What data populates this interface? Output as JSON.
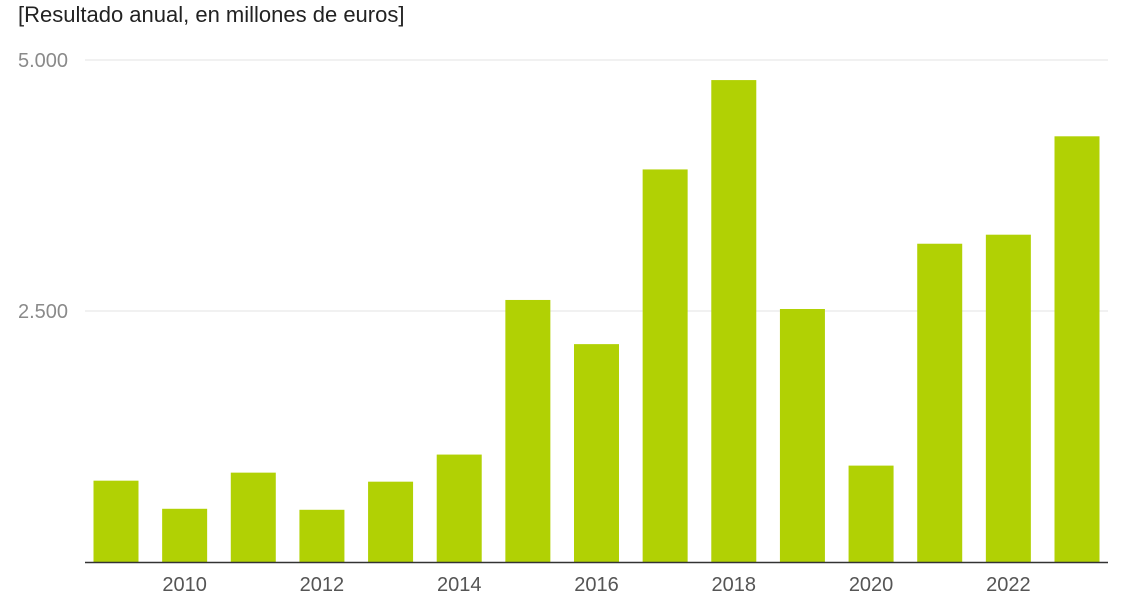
{
  "chart_data": {
    "type": "bar",
    "subtitle": "[Resultado anual, en millones de euros]",
    "categories": [
      "2009",
      "2010",
      "2011",
      "2012",
      "2013",
      "2014",
      "2015",
      "2016",
      "2017",
      "2018",
      "2019",
      "2020",
      "2021",
      "2022",
      "2023"
    ],
    "x_tick_labels": [
      "2010",
      "2012",
      "2014",
      "2016",
      "2018",
      "2020",
      "2022"
    ],
    "values": [
      810,
      530,
      890,
      520,
      800,
      1070,
      2610,
      2170,
      3910,
      4800,
      2520,
      960,
      3170,
      3260,
      4240
    ],
    "y_ticks": [
      "2.500",
      "5.000"
    ],
    "y_tick_values": [
      2500,
      5000
    ],
    "ylim": [
      0,
      5000
    ],
    "grid": true,
    "bar_color": "#b1d104",
    "grid_color": "#e3e3e3",
    "axis_color": "#333333"
  }
}
